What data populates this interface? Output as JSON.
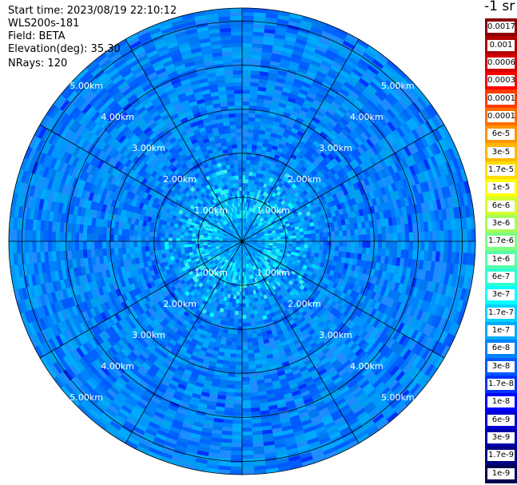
{
  "header": {
    "start_time": "Start time: 2023/08/19 22:10:12",
    "device": "WLS200s-181",
    "field": "Field: BETA",
    "elevation": "Elevation(deg): 35.30",
    "nrays": "NRays: 120"
  },
  "colorbar": {
    "unit": "-1 sr",
    "entries": [
      {
        "label": "0.0017",
        "color": "#8b0000"
      },
      {
        "label": "0.001",
        "color": "#b20000"
      },
      {
        "label": "0.0006",
        "color": "#d60000"
      },
      {
        "label": "0.0003",
        "color": "#ff0000"
      },
      {
        "label": "0.00017",
        "color": "#ff3c00"
      },
      {
        "label": "0.0001",
        "color": "#ff6e00"
      },
      {
        "label": "6e-5",
        "color": "#ff9400"
      },
      {
        "label": "3e-5",
        "color": "#ffb800"
      },
      {
        "label": "1.7e-5",
        "color": "#ffdd00"
      },
      {
        "label": "1e-5",
        "color": "#ffff00"
      },
      {
        "label": "6e-6",
        "color": "#d2ff2d"
      },
      {
        "label": "3e-6",
        "color": "#a5ff5a"
      },
      {
        "label": "1.7e-6",
        "color": "#7dff82"
      },
      {
        "label": "1e-6",
        "color": "#55ffaa"
      },
      {
        "label": "6e-7",
        "color": "#2dffd2"
      },
      {
        "label": "3e-7",
        "color": "#00ffff"
      },
      {
        "label": "1.7e-7",
        "color": "#00d2ff"
      },
      {
        "label": "1e-7",
        "color": "#00aaff"
      },
      {
        "label": "6e-8",
        "color": "#0082ff"
      },
      {
        "label": "3e-8",
        "color": "#005aff"
      },
      {
        "label": "1.7e-8",
        "color": "#0032ff"
      },
      {
        "label": "1e-8",
        "color": "#0000ff"
      },
      {
        "label": "6e-9",
        "color": "#0000d2"
      },
      {
        "label": "3e-9",
        "color": "#0000aa"
      },
      {
        "label": "1.7e-9",
        "color": "#000082"
      },
      {
        "label": "1e-9",
        "color": "#000050"
      }
    ]
  },
  "chart_data": {
    "type": "heatmap",
    "projection": "polar (PPI scan)",
    "field": "BETA",
    "elevation_deg": 35.3,
    "n_rays": 120,
    "range_ring_labels": [
      "1.00km",
      "2.00km",
      "3.00km",
      "4.00km",
      "5.00km"
    ],
    "range_rings_km": [
      1,
      2,
      3,
      4,
      5
    ],
    "max_range_km": 5.3,
    "azimuth_spokes_deg": [
      0,
      30,
      60,
      90,
      120,
      150,
      180,
      210,
      240,
      270,
      300,
      330
    ],
    "value_range": [
      1e-09,
      0.0017
    ],
    "dominant_values": "mostly ~1e-8 to 1e-7, higher (~1.7e-7 to 6e-7) within ~1.5 km of the center"
  }
}
